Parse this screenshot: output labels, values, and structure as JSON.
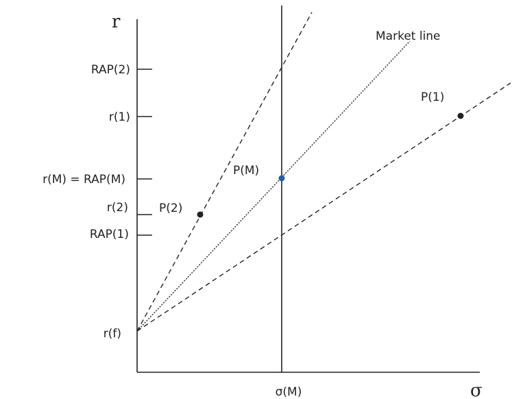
{
  "axes": {
    "y_label": "r",
    "x_label": "σ",
    "y_ticks": [
      "RAP(2)",
      "r(1)",
      "r(M) = RAP(M)",
      "r(2)",
      "RAP(1)",
      "r(f)"
    ],
    "x_ticks": [
      "σ(M)"
    ]
  },
  "lines": {
    "market_line_label": "Market line"
  },
  "points": {
    "p1": "P(1)",
    "p2": "P(2)",
    "pm": "P(M)"
  },
  "colors": {
    "ink": "#222222",
    "market_point": "#1f5fa8"
  }
}
